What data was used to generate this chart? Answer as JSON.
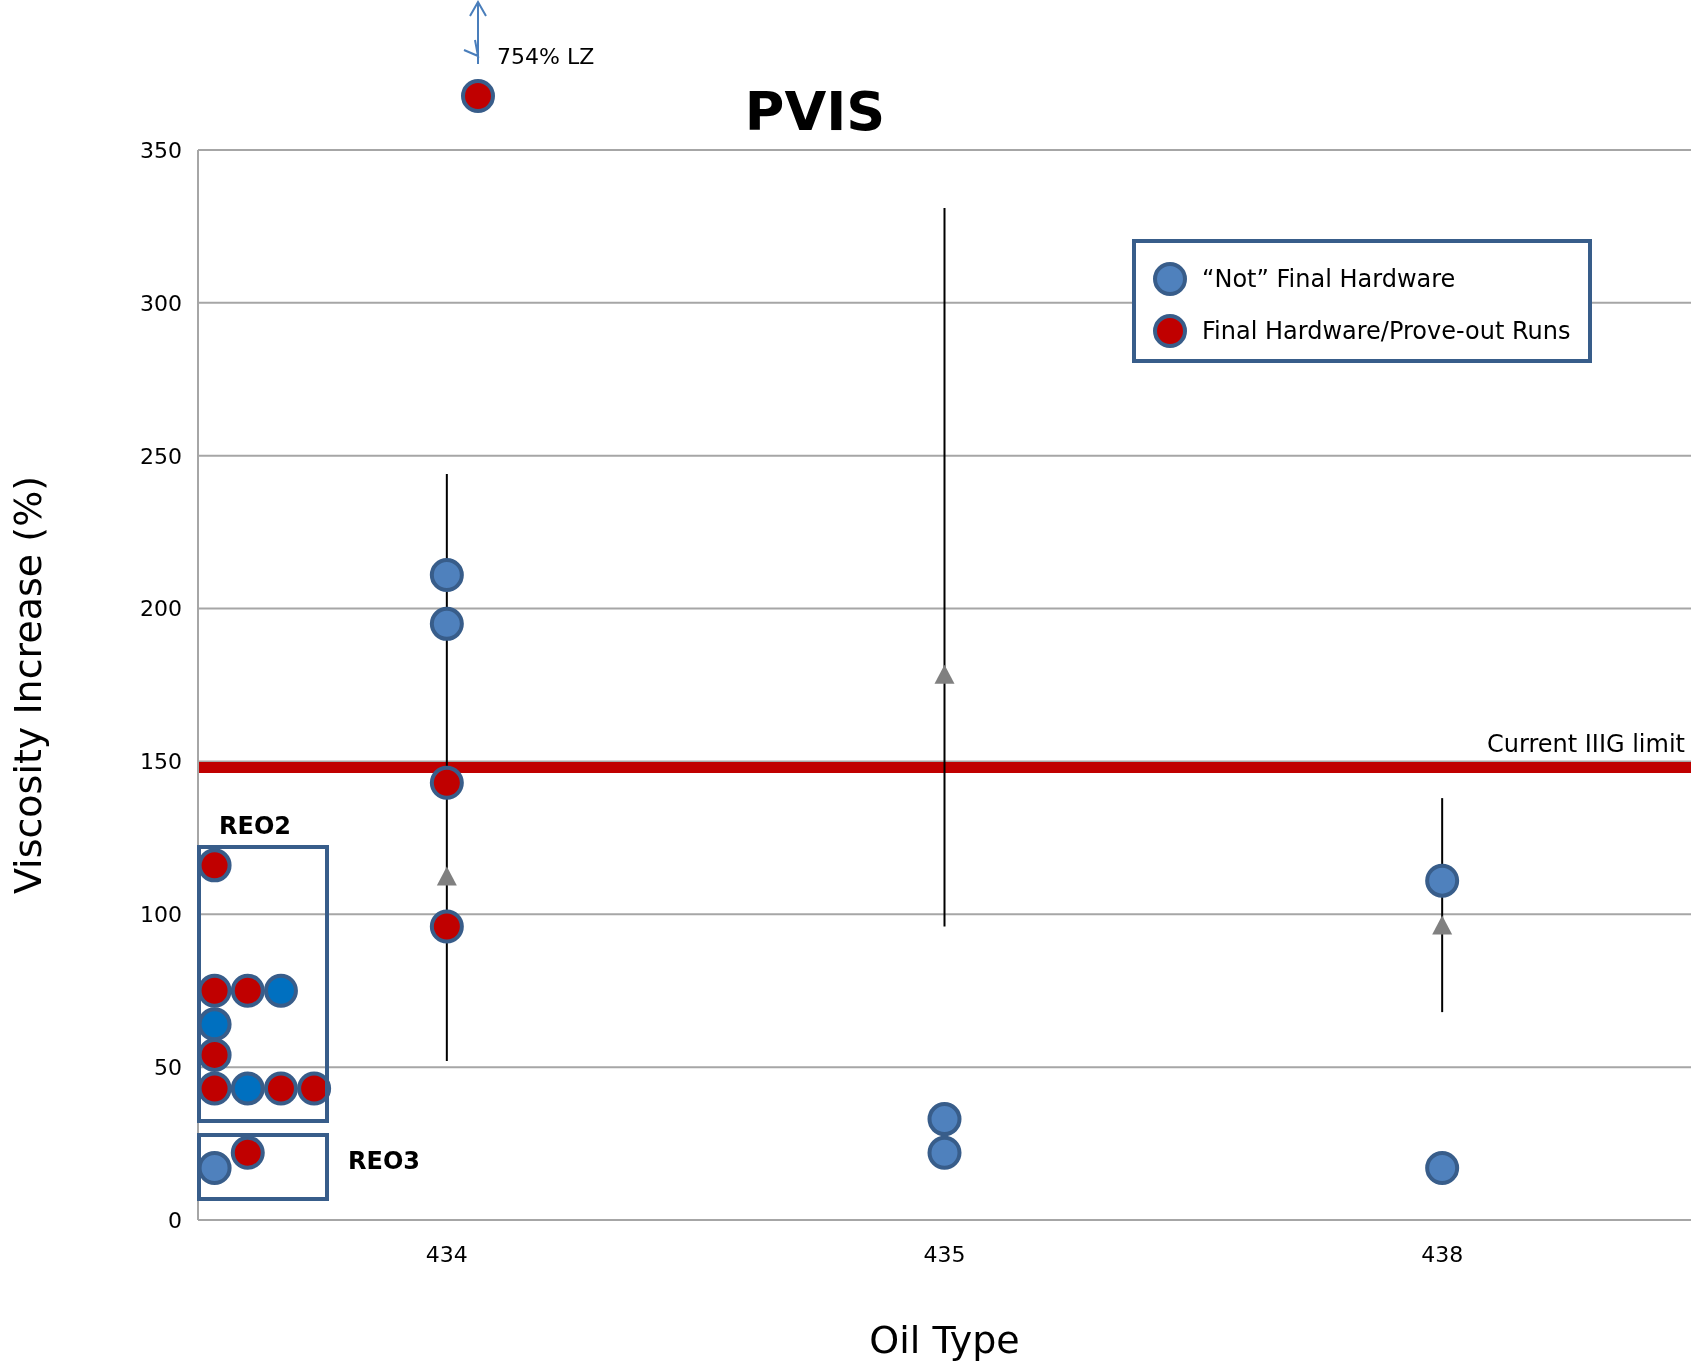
{
  "chart_data": {
    "type": "scatter",
    "title": "PVIS",
    "xlabel": "Oil Type",
    "ylabel": "Viscosity Increase (%)",
    "categories": [
      null,
      null,
      null,
      null,
      null,
      null,
      null,
      "434",
      null,
      null,
      null,
      null,
      null,
      null,
      null,
      null,
      null,
      null,
      null,
      null,
      null,
      null,
      "435",
      null,
      null,
      null,
      null,
      null,
      null,
      null,
      null,
      null,
      null,
      null,
      null,
      null,
      null,
      "438",
      null,
      null,
      null,
      null,
      null,
      null,
      null
    ],
    "ylim": [
      0,
      350
    ],
    "yticks": [
      0,
      50,
      100,
      150,
      200,
      250,
      300,
      350
    ],
    "grid": "y",
    "legend": "top right",
    "series": [
      {
        "marker": "triangle",
        "color": "#808080",
        "values": [
          null,
          null,
          null,
          null,
          null,
          null,
          null,
          112,
          null,
          null,
          null,
          null,
          null,
          null,
          null,
          null,
          null,
          null,
          null,
          null,
          null,
          null,
          178,
          null,
          null,
          null,
          null,
          null,
          null,
          null,
          null,
          null,
          null,
          null,
          null,
          null,
          null,
          96,
          null,
          null,
          null,
          null,
          null,
          null,
          null
        ],
        "errors": [
          null,
          null,
          null,
          null,
          null,
          null,
          null,
          [
            52,
            244
          ],
          null,
          null,
          null,
          null,
          null,
          null,
          null,
          null,
          null,
          null,
          null,
          null,
          null,
          null,
          [
            96,
            331
          ],
          null,
          null,
          null,
          null,
          null,
          null,
          null,
          null,
          null,
          null,
          null,
          null,
          null,
          null,
          [
            68,
            138
          ],
          null,
          null,
          null,
          null,
          null,
          null,
          null
        ]
      },
      {
        "marker": "circle",
        "name": "“Not” Final Hardware",
        "color": "#4f81bd",
        "values": [
          64,
          43,
          75,
          null,
          null,
          null,
          null,
          211,
          null,
          null,
          null,
          null,
          null,
          null,
          null,
          null,
          null,
          null,
          null,
          null,
          null,
          null,
          33,
          null,
          null,
          null,
          null,
          null,
          null,
          null,
          null,
          null,
          null,
          null,
          null,
          null,
          null,
          111,
          null,
          null,
          null,
          null,
          null,
          null,
          null
        ],
        "colors": [
          "#0070c0",
          "#0070c0",
          "#0070c0",
          null,
          null,
          null,
          null,
          "#4f81bd",
          null,
          null,
          null,
          null,
          null,
          null,
          null,
          null,
          null,
          null,
          null,
          null,
          null,
          null,
          "#4f81bd",
          null,
          null,
          null,
          null,
          null,
          null,
          null,
          null,
          null,
          null,
          null,
          null,
          null,
          null,
          "#4f81bd",
          null,
          null,
          null,
          null,
          null,
          null,
          null
        ]
      },
      {
        "marker": "circle",
        "color": "#4f81bd",
        "values": [
          17,
          null,
          null,
          null,
          null,
          null,
          null,
          195,
          null,
          null,
          null,
          null,
          null,
          null,
          null,
          null,
          null,
          null,
          null,
          null,
          null,
          null,
          22,
          null,
          null,
          null,
          null,
          null,
          null,
          null,
          null,
          null,
          null,
          null,
          null,
          null,
          null,
          17,
          null,
          null,
          null,
          null,
          null,
          null,
          null
        ]
      },
      {
        "marker": "circle",
        "name": "Final Hardware/Prove-out Runs",
        "color": "#c00000",
        "values": [
          116,
          75,
          43,
          43,
          null,
          null,
          null,
          143,
          null,
          null,
          null,
          null,
          null,
          null,
          null,
          null,
          null,
          null,
          null,
          null,
          null,
          null,
          null,
          null,
          null,
          null,
          null,
          null,
          null,
          null,
          null,
          null,
          null,
          null,
          null,
          null,
          null,
          null,
          null,
          null,
          null,
          null,
          null,
          null,
          null
        ]
      },
      {
        "marker": "circle",
        "color": "#c00000",
        "values": [
          75,
          22,
          null,
          null,
          null,
          null,
          null,
          96,
          null,
          null,
          null,
          null,
          null,
          null,
          null,
          null,
          null,
          null,
          null,
          null,
          null,
          null,
          null,
          null,
          null,
          null,
          null,
          null,
          null,
          null,
          null,
          null,
          null,
          null,
          null,
          null,
          null,
          null,
          null,
          null,
          null,
          null,
          null,
          null,
          null
        ]
      },
      {
        "marker": "circle",
        "color": "#c00000",
        "values": [
          54,
          null,
          null,
          null,
          null,
          null,
          null,
          null,
          null,
          null,
          null,
          null,
          null,
          null,
          null,
          null,
          null,
          null,
          null,
          null,
          null,
          null,
          null,
          null,
          null,
          null,
          null,
          null,
          null,
          null,
          null,
          null,
          null,
          null,
          null,
          null,
          null,
          null,
          null,
          null,
          null,
          null,
          null,
          null,
          null
        ]
      },
      {
        "marker": "circle",
        "color": "#c00000",
        "values": [
          43,
          null,
          null,
          null,
          null,
          null,
          null,
          null,
          null,
          null,
          null,
          null,
          null,
          null,
          null,
          null,
          null,
          null,
          null,
          null,
          null,
          null,
          null,
          null,
          null,
          null,
          null,
          null,
          null,
          null,
          null,
          null,
          null,
          null,
          null,
          null,
          null,
          null,
          null,
          null,
          null,
          null,
          null,
          null,
          null
        ]
      }
    ],
    "ref_lines": [
      {
        "axis": "y",
        "value": 148,
        "label": "Current IIIG limit",
        "color": "#c00000"
      }
    ],
    "annotations": [
      "754% LZ",
      "REO2",
      "REO3"
    ]
  }
}
